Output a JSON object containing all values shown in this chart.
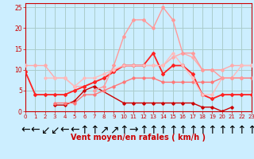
{
  "xlabel": "Vent moyen/en rafales ( km/h )",
  "xlim": [
    0,
    23
  ],
  "ylim": [
    0,
    26
  ],
  "yticks": [
    0,
    5,
    10,
    15,
    20,
    25
  ],
  "xticks": [
    0,
    1,
    2,
    3,
    4,
    5,
    6,
    7,
    8,
    9,
    10,
    11,
    12,
    13,
    14,
    15,
    16,
    17,
    18,
    19,
    20,
    21,
    22,
    23
  ],
  "bg_color": "#cceeff",
  "grid_color": "#aacccc",
  "arrows": [
    "←",
    "←",
    "↙",
    "↙",
    "←",
    "←",
    "↑",
    "↑",
    "↗",
    "↗",
    "↑",
    "→",
    "↑",
    "↑",
    "↑",
    "↑",
    "↑",
    "↑",
    "↑",
    "↑",
    "↑",
    "↑",
    "↑",
    "↑"
  ],
  "series": [
    {
      "x": [
        0,
        1,
        2,
        3,
        4,
        5,
        6,
        7,
        8,
        9,
        10,
        11,
        12,
        13,
        14,
        15,
        16,
        17,
        18,
        19,
        20,
        21,
        22,
        23
      ],
      "y": [
        11,
        11,
        11,
        8,
        8,
        6,
        6,
        7,
        8,
        10,
        11,
        11,
        11,
        11,
        11,
        13,
        14,
        13,
        10,
        10,
        10,
        11,
        11,
        11
      ],
      "color": "#ffaaaa",
      "lw": 1.0,
      "marker": "D",
      "ms": 2.0
    },
    {
      "x": [
        0,
        1,
        2,
        3,
        4,
        5,
        6,
        7,
        8,
        9,
        10,
        11,
        12,
        13,
        14,
        15,
        16,
        17,
        18,
        19,
        20,
        21,
        22,
        23
      ],
      "y": [
        9.5,
        4,
        4,
        4,
        4,
        5,
        6,
        7,
        8,
        9.5,
        11,
        11,
        11,
        14,
        9,
        11,
        11,
        9,
        4,
        3,
        4,
        4,
        4,
        4
      ],
      "color": "#ff2222",
      "lw": 1.3,
      "marker": "D",
      "ms": 2.0
    },
    {
      "x": [
        3,
        4,
        5,
        6,
        7,
        10,
        11,
        12,
        13,
        14,
        15,
        16,
        17,
        18,
        19,
        20,
        21
      ],
      "y": [
        1.5,
        1.5,
        2.5,
        5,
        6,
        2,
        2,
        2,
        2,
        2,
        2,
        2,
        2,
        1,
        1,
        0,
        1
      ],
      "color": "#cc0000",
      "lw": 1.0,
      "marker": "D",
      "ms": 1.8
    },
    {
      "x": [
        3,
        4,
        5,
        6,
        7,
        8,
        9,
        10,
        11,
        12,
        13,
        14,
        15,
        16,
        17,
        18,
        19,
        20,
        21,
        22,
        23
      ],
      "y": [
        2,
        2,
        2,
        4,
        4,
        5,
        6,
        7,
        8,
        8,
        8,
        7,
        7,
        7,
        7,
        7,
        7,
        8,
        8,
        8,
        8
      ],
      "color": "#ff7777",
      "lw": 1.0,
      "marker": "D",
      "ms": 1.8
    },
    {
      "x": [
        2,
        3,
        4,
        5,
        6,
        7,
        8,
        9,
        10,
        11,
        12,
        13,
        14,
        15,
        16,
        17,
        18,
        19,
        20,
        21,
        22,
        23
      ],
      "y": [
        8,
        8,
        8,
        6,
        8,
        8,
        9,
        10,
        11,
        11,
        11,
        11,
        11,
        14,
        11,
        8,
        4,
        4,
        8,
        8,
        11,
        11
      ],
      "color": "#ffbbbb",
      "lw": 1.0,
      "marker": "D",
      "ms": 1.8
    },
    {
      "x": [
        7,
        8,
        9,
        10,
        11,
        12,
        13,
        14,
        15,
        16,
        17,
        18,
        19,
        20,
        21,
        22
      ],
      "y": [
        5,
        6,
        11,
        18,
        22,
        22,
        20,
        25,
        22,
        14,
        14,
        10,
        10,
        8,
        8,
        8
      ],
      "color": "#ff9999",
      "lw": 1.0,
      "marker": "D",
      "ms": 2.0
    }
  ]
}
